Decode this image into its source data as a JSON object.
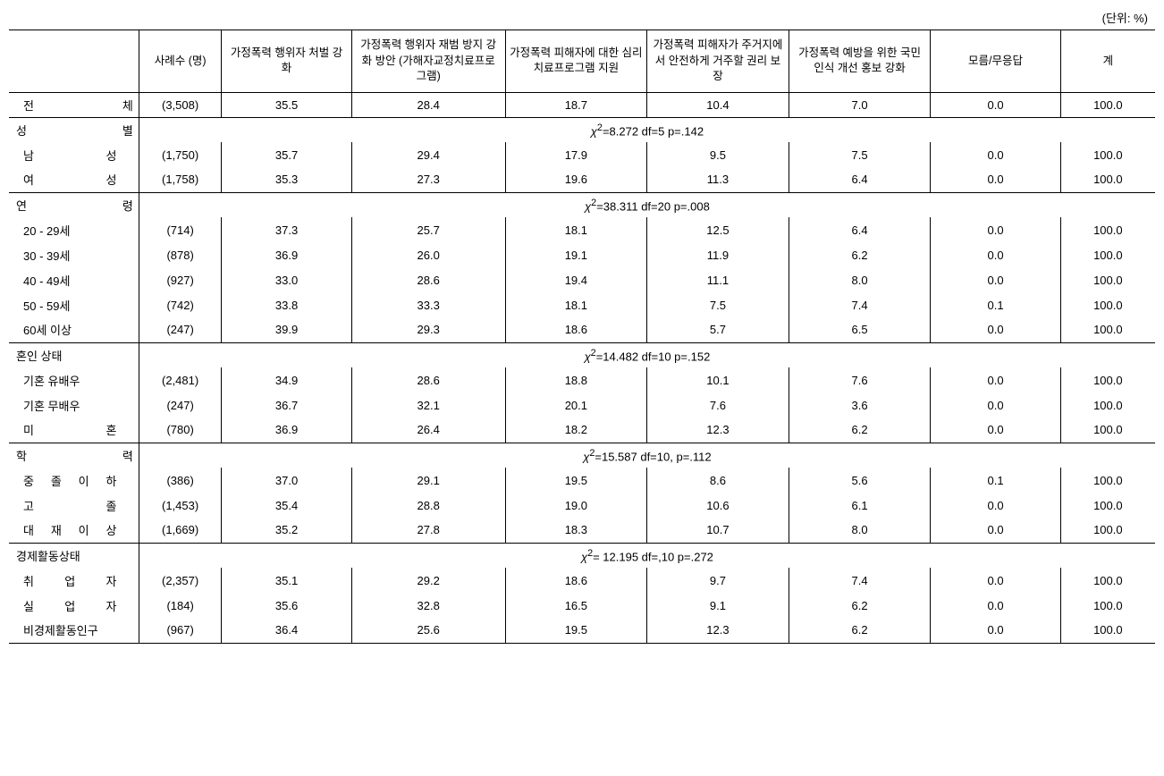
{
  "unit_label": "(단위: %)",
  "headers": {
    "category": "",
    "cases": "사례수\n(명)",
    "col1": "가정폭력 행위자\n처벌 강화",
    "col2": "가정폭력 행위자\n재범 방지 강화 방안\n(가해자교정치료프로\n그램)",
    "col3": "가정폭력 피해자에\n대한 심리\n치료프로그램 지원",
    "col4": "가정폭력 피해자가\n주거지에서\n안전하게 거주할\n권리 보장",
    "col5": "가정폭력 예방을\n위한 국민 인식 개선\n홍보 강화",
    "col6": "모름/무응답",
    "col7": "계"
  },
  "total_row": {
    "label_parts": [
      "전",
      "체"
    ],
    "cases": "(3,508)",
    "v1": "35.5",
    "v2": "28.4",
    "v3": "18.7",
    "v4": "10.4",
    "v5": "7.0",
    "v6": "0.0",
    "v7": "100.0"
  },
  "groups": [
    {
      "header_parts": [
        "성",
        "별"
      ],
      "stat": "χ²=8.272 df=5 p=.142",
      "rows": [
        {
          "label_parts": [
            "남",
            "성"
          ],
          "cases": "(1,750)",
          "v1": "35.7",
          "v2": "29.4",
          "v3": "17.9",
          "v4": "9.5",
          "v5": "7.5",
          "v6": "0.0",
          "v7": "100.0"
        },
        {
          "label_parts": [
            "여",
            "성"
          ],
          "cases": "(1,758)",
          "v1": "35.3",
          "v2": "27.3",
          "v3": "19.6",
          "v4": "11.3",
          "v5": "6.4",
          "v6": "0.0",
          "v7": "100.0"
        }
      ]
    },
    {
      "header_parts": [
        "연",
        "령"
      ],
      "stat": "χ²=38.311 df=20 p=.008",
      "rows": [
        {
          "label": "20 - 29세",
          "cases": "(714)",
          "v1": "37.3",
          "v2": "25.7",
          "v3": "18.1",
          "v4": "12.5",
          "v5": "6.4",
          "v6": "0.0",
          "v7": "100.0"
        },
        {
          "label": "30 - 39세",
          "cases": "(878)",
          "v1": "36.9",
          "v2": "26.0",
          "v3": "19.1",
          "v4": "11.9",
          "v5": "6.2",
          "v6": "0.0",
          "v7": "100.0"
        },
        {
          "label": "40 - 49세",
          "cases": "(927)",
          "v1": "33.0",
          "v2": "28.6",
          "v3": "19.4",
          "v4": "11.1",
          "v5": "8.0",
          "v6": "0.0",
          "v7": "100.0"
        },
        {
          "label": "50 - 59세",
          "cases": "(742)",
          "v1": "33.8",
          "v2": "33.3",
          "v3": "18.1",
          "v4": "7.5",
          "v5": "7.4",
          "v6": "0.1",
          "v7": "100.0"
        },
        {
          "label": "60세 이상",
          "cases": "(247)",
          "v1": "39.9",
          "v2": "29.3",
          "v3": "18.6",
          "v4": "5.7",
          "v5": "6.5",
          "v6": "0.0",
          "v7": "100.0"
        }
      ]
    },
    {
      "header": "혼인 상태",
      "stat": "χ²=14.482 df=10 p=.152",
      "rows": [
        {
          "label": "기혼 유배우",
          "cases": "(2,481)",
          "v1": "34.9",
          "v2": "28.6",
          "v3": "18.8",
          "v4": "10.1",
          "v5": "7.6",
          "v6": "0.0",
          "v7": "100.0"
        },
        {
          "label": "기혼 무배우",
          "cases": "(247)",
          "v1": "36.7",
          "v2": "32.1",
          "v3": "20.1",
          "v4": "7.6",
          "v5": "3.6",
          "v6": "0.0",
          "v7": "100.0"
        },
        {
          "label_parts": [
            "미",
            "혼"
          ],
          "cases": "(780)",
          "v1": "36.9",
          "v2": "26.4",
          "v3": "18.2",
          "v4": "12.3",
          "v5": "6.2",
          "v6": "0.0",
          "v7": "100.0"
        }
      ]
    },
    {
      "header_parts": [
        "학",
        "력"
      ],
      "stat": "χ²=15.587 df=10, p=.112",
      "rows": [
        {
          "label_parts": [
            "중",
            "졸",
            "이",
            "하"
          ],
          "cases": "(386)",
          "v1": "37.0",
          "v2": "29.1",
          "v3": "19.5",
          "v4": "8.6",
          "v5": "5.6",
          "v6": "0.1",
          "v7": "100.0"
        },
        {
          "label_parts": [
            "고",
            "졸"
          ],
          "cases": "(1,453)",
          "v1": "35.4",
          "v2": "28.8",
          "v3": "19.0",
          "v4": "10.6",
          "v5": "6.1",
          "v6": "0.0",
          "v7": "100.0"
        },
        {
          "label_parts": [
            "대",
            "재",
            "이",
            "상"
          ],
          "cases": "(1,669)",
          "v1": "35.2",
          "v2": "27.8",
          "v3": "18.3",
          "v4": "10.7",
          "v5": "8.0",
          "v6": "0.0",
          "v7": "100.0"
        }
      ]
    },
    {
      "header": "경제활동상태",
      "stat": "χ²= 12.195 df=,10 p=.272",
      "rows": [
        {
          "label_parts": [
            "취",
            "업",
            "자"
          ],
          "cases": "(2,357)",
          "v1": "35.1",
          "v2": "29.2",
          "v3": "18.6",
          "v4": "9.7",
          "v5": "7.4",
          "v6": "0.0",
          "v7": "100.0"
        },
        {
          "label_parts": [
            "실",
            "업",
            "자"
          ],
          "cases": "(184)",
          "v1": "35.6",
          "v2": "32.8",
          "v3": "16.5",
          "v4": "9.1",
          "v5": "6.2",
          "v6": "0.0",
          "v7": "100.0"
        },
        {
          "label": "비경제활동인구",
          "cases": "(967)",
          "v1": "36.4",
          "v2": "25.6",
          "v3": "19.5",
          "v4": "12.3",
          "v5": "6.2",
          "v6": "0.0",
          "v7": "100.0"
        }
      ]
    }
  ]
}
